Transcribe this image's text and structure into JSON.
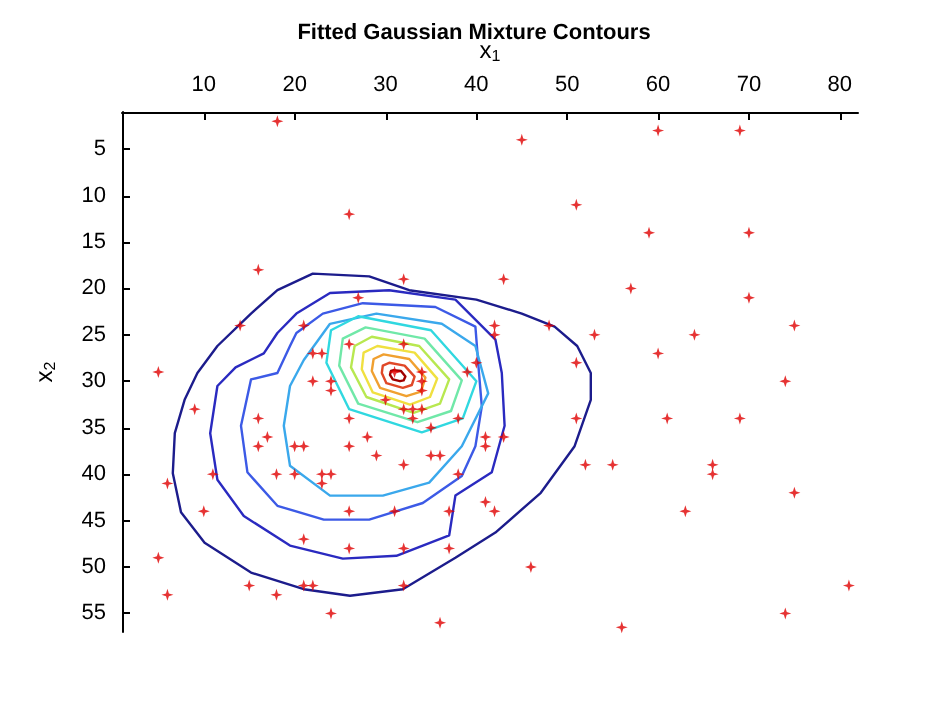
{
  "chart_data": {
    "type": "scatter",
    "title": "Fitted Gaussian Mixture Contours",
    "xlabel": "x$_{1}$",
    "ylabel": "x$_{2}$",
    "xlim": [
      1,
      82
    ],
    "xticks": [
      10,
      20,
      30,
      40,
      50,
      60,
      70,
      80
    ],
    "ylim": [
      57,
      1
    ],
    "yticks": [
      5,
      10,
      15,
      20,
      25,
      30,
      35,
      40,
      45,
      50,
      55
    ],
    "grid": false,
    "series": [
      {
        "marker": "star",
        "color": "#e00000",
        "x": [
          18.1,
          26,
          16,
          32,
          27,
          14,
          21,
          22,
          23,
          26,
          32,
          5,
          45,
          60,
          69,
          51,
          59,
          70,
          43,
          57,
          70,
          42,
          42,
          48,
          53,
          64,
          75,
          60,
          40,
          51,
          74,
          39,
          38,
          51,
          61,
          69,
          41,
          43,
          41,
          38,
          52,
          55,
          66,
          66,
          75,
          41,
          42,
          63,
          46,
          81,
          74,
          56,
          9,
          6,
          11,
          10,
          5,
          6,
          16,
          17,
          16,
          20,
          21,
          18,
          20,
          23,
          24,
          23,
          22,
          24,
          24,
          26,
          26,
          28,
          29,
          21,
          26,
          31,
          26,
          32,
          32,
          37,
          37,
          15,
          18,
          21,
          22,
          24,
          36,
          32,
          35,
          36,
          35,
          31,
          34,
          30,
          32,
          33,
          34,
          33,
          34,
          34
        ],
        "values": [
          2,
          12,
          18,
          19,
          21,
          24,
          24,
          27,
          27,
          26,
          26,
          29,
          4,
          3,
          3,
          11,
          14,
          14,
          19,
          20,
          21,
          24,
          25,
          24,
          25,
          25,
          24,
          27,
          28,
          28,
          30,
          29,
          34,
          34,
          34,
          34,
          36,
          36,
          37,
          40,
          39,
          39,
          39,
          40,
          42,
          43,
          44,
          44,
          50,
          52,
          55,
          56.5,
          33,
          41,
          40,
          44,
          49,
          53,
          34,
          36,
          37,
          37,
          37,
          40,
          40,
          40,
          40,
          41,
          30,
          30,
          31,
          34,
          37,
          36,
          38,
          47,
          44,
          44,
          48,
          48,
          52,
          48,
          44,
          52,
          53,
          52,
          52,
          55,
          56,
          39,
          38,
          38,
          35,
          29,
          29,
          32,
          33,
          33,
          33,
          34,
          31,
          30
        ]
      }
    ]
  }
}
